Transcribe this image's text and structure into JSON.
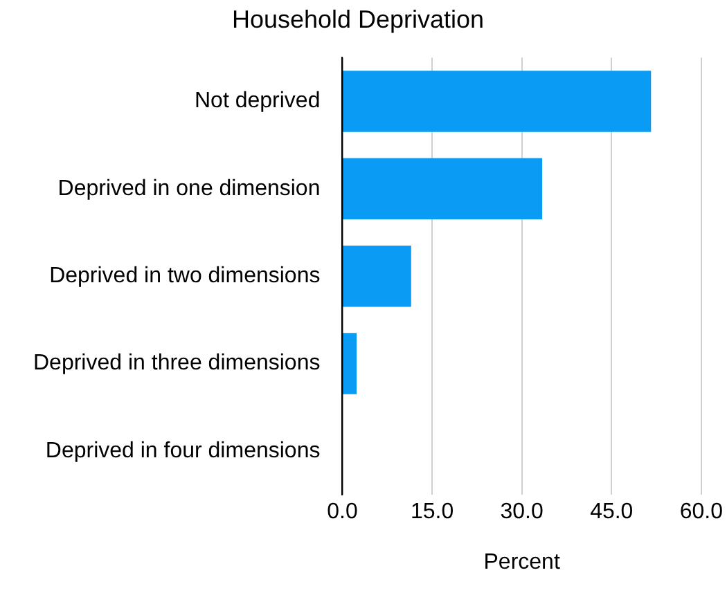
{
  "chart_data": {
    "type": "bar",
    "orientation": "horizontal",
    "title": "Household Deprivation",
    "xlabel": "Percent",
    "categories": [
      "Not deprived",
      "Deprived in one dimension",
      "Deprived in two dimensions",
      "Deprived in three dimensions",
      "Deprived in four dimensions"
    ],
    "values": [
      51.6,
      33.4,
      11.5,
      2.4,
      0
    ],
    "color": "#0a9cf5",
    "xlim": [
      0,
      60
    ],
    "xticks": [
      {
        "value": 0,
        "label": "0.0"
      },
      {
        "value": 15,
        "label": "15.0"
      },
      {
        "value": 30,
        "label": "30.0"
      },
      {
        "value": 45,
        "label": "45.0"
      },
      {
        "value": 60,
        "label": "60.0"
      }
    ],
    "grid": "x",
    "legend": false
  }
}
